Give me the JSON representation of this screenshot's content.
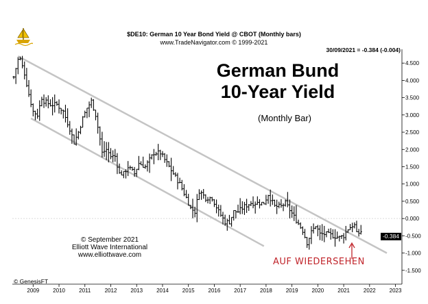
{
  "header": {
    "title": "$DE10:  German 10 Year Bond Yield @ CBOT  (Monthly bars)",
    "source": "www.TradeNavigator.com © 1999-2021",
    "last_readout": "30/09/2021 = -0.384 (-0.004)"
  },
  "annotations": {
    "big_title_line1": "German Bund",
    "big_title_line2": "10-Year Yield",
    "subtitle": "(Monthly Bar)",
    "copyright_line1": "© September 2021",
    "copyright_line2": "Elliott Wave International",
    "copyright_line3": "www.elliottwave.com",
    "vendor": "© GenesisFT",
    "callout": "AUF WIEDERSEHEN",
    "last_value_tag": "-0.384"
  },
  "colors": {
    "bars": "#000000",
    "channel": "#c4c4c4",
    "callout": "#c0242a",
    "logo": "#d9a400"
  },
  "icons": {
    "logo": "sailing-ship-icon",
    "arrow": "up-arrow-icon"
  },
  "chart_data": {
    "type": "ohlc",
    "title": "$DE10:  German 10 Year Bond Yield @ CBOT  (Monthly bars)",
    "xlim": [
      "2008-04",
      "2023-04"
    ],
    "ylim": [
      -1.9,
      4.9
    ],
    "grid": false,
    "x_tick_labels": [
      "2009",
      "2010",
      "2011",
      "2012",
      "2013",
      "2014",
      "2015",
      "2016",
      "2017",
      "2018",
      "2019",
      "2020",
      "2021",
      "2022",
      "2023"
    ],
    "y_tick_labels": [
      "4.500",
      "4.000",
      "3.500",
      "3.000",
      "2.500",
      "2.000",
      "1.500",
      "1.000",
      "0.500",
      "0.000",
      "-0.500",
      "-1.000",
      "-1.500"
    ],
    "y_tick_values": [
      4.5,
      4.0,
      3.5,
      3.0,
      2.5,
      2.0,
      1.5,
      1.0,
      0.5,
      0.0,
      -0.5,
      -1.0,
      -1.5
    ],
    "zero_reference_line": 0.0,
    "last_value": {
      "date": "2021-09-30",
      "value": -0.384,
      "change": -0.004
    },
    "price_path": [
      [
        "2008-04",
        4.1
      ],
      [
        "2008-06",
        4.6
      ],
      [
        "2008-07",
        4.6
      ],
      [
        "2008-09",
        4.2
      ],
      [
        "2008-11",
        3.6
      ],
      [
        "2009-01",
        3.1
      ],
      [
        "2009-03",
        3.0
      ],
      [
        "2009-05",
        3.5
      ],
      [
        "2009-06",
        3.4
      ],
      [
        "2009-09",
        3.3
      ],
      [
        "2009-12",
        3.3
      ],
      [
        "2010-03",
        3.1
      ],
      [
        "2010-06",
        2.6
      ],
      [
        "2010-08",
        2.2
      ],
      [
        "2010-10",
        2.5
      ],
      [
        "2010-12",
        2.9
      ],
      [
        "2011-02",
        3.2
      ],
      [
        "2011-04",
        3.4
      ],
      [
        "2011-06",
        3.0
      ],
      [
        "2011-08",
        2.3
      ],
      [
        "2011-09",
        1.9
      ],
      [
        "2011-11",
        2.0
      ],
      [
        "2012-01",
        1.8
      ],
      [
        "2012-03",
        1.8
      ],
      [
        "2012-05",
        1.3
      ],
      [
        "2012-07",
        1.3
      ],
      [
        "2012-09",
        1.5
      ],
      [
        "2012-12",
        1.3
      ],
      [
        "2013-02",
        1.6
      ],
      [
        "2013-05",
        1.5
      ],
      [
        "2013-07",
        1.7
      ],
      [
        "2013-09",
        1.9
      ],
      [
        "2013-12",
        1.9
      ],
      [
        "2014-03",
        1.6
      ],
      [
        "2014-06",
        1.3
      ],
      [
        "2014-09",
        1.0
      ],
      [
        "2014-12",
        0.6
      ],
      [
        "2015-02",
        0.3
      ],
      [
        "2015-04",
        0.2
      ],
      [
        "2015-06",
        0.8
      ],
      [
        "2015-09",
        0.6
      ],
      [
        "2015-12",
        0.6
      ],
      [
        "2016-03",
        0.2
      ],
      [
        "2016-06",
        -0.1
      ],
      [
        "2016-08",
        -0.1
      ],
      [
        "2016-10",
        0.2
      ],
      [
        "2016-12",
        0.2
      ],
      [
        "2017-03",
        0.35
      ],
      [
        "2017-06",
        0.45
      ],
      [
        "2017-09",
        0.45
      ],
      [
        "2017-12",
        0.45
      ],
      [
        "2018-02",
        0.7
      ],
      [
        "2018-05",
        0.35
      ],
      [
        "2018-08",
        0.35
      ],
      [
        "2018-10",
        0.45
      ],
      [
        "2018-12",
        0.25
      ],
      [
        "2019-03",
        -0.05
      ],
      [
        "2019-06",
        -0.35
      ],
      [
        "2019-08",
        -0.7
      ],
      [
        "2019-10",
        -0.4
      ],
      [
        "2019-12",
        -0.2
      ],
      [
        "2020-02",
        -0.45
      ],
      [
        "2020-03",
        -0.45
      ],
      [
        "2020-05",
        -0.45
      ],
      [
        "2020-08",
        -0.5
      ],
      [
        "2020-11",
        -0.55
      ],
      [
        "2021-01",
        -0.5
      ],
      [
        "2021-03",
        -0.3
      ],
      [
        "2021-05",
        -0.2
      ],
      [
        "2021-06",
        -0.2
      ],
      [
        "2021-07",
        -0.45
      ],
      [
        "2021-09",
        -0.384
      ]
    ],
    "channel_lines": {
      "upper": [
        [
          "2008-06",
          4.7
        ],
        [
          "2022-09",
          -1.0
        ]
      ],
      "lower": [
        [
          "2008-12",
          2.9
        ],
        [
          "2017-12",
          -0.8
        ]
      ]
    }
  }
}
